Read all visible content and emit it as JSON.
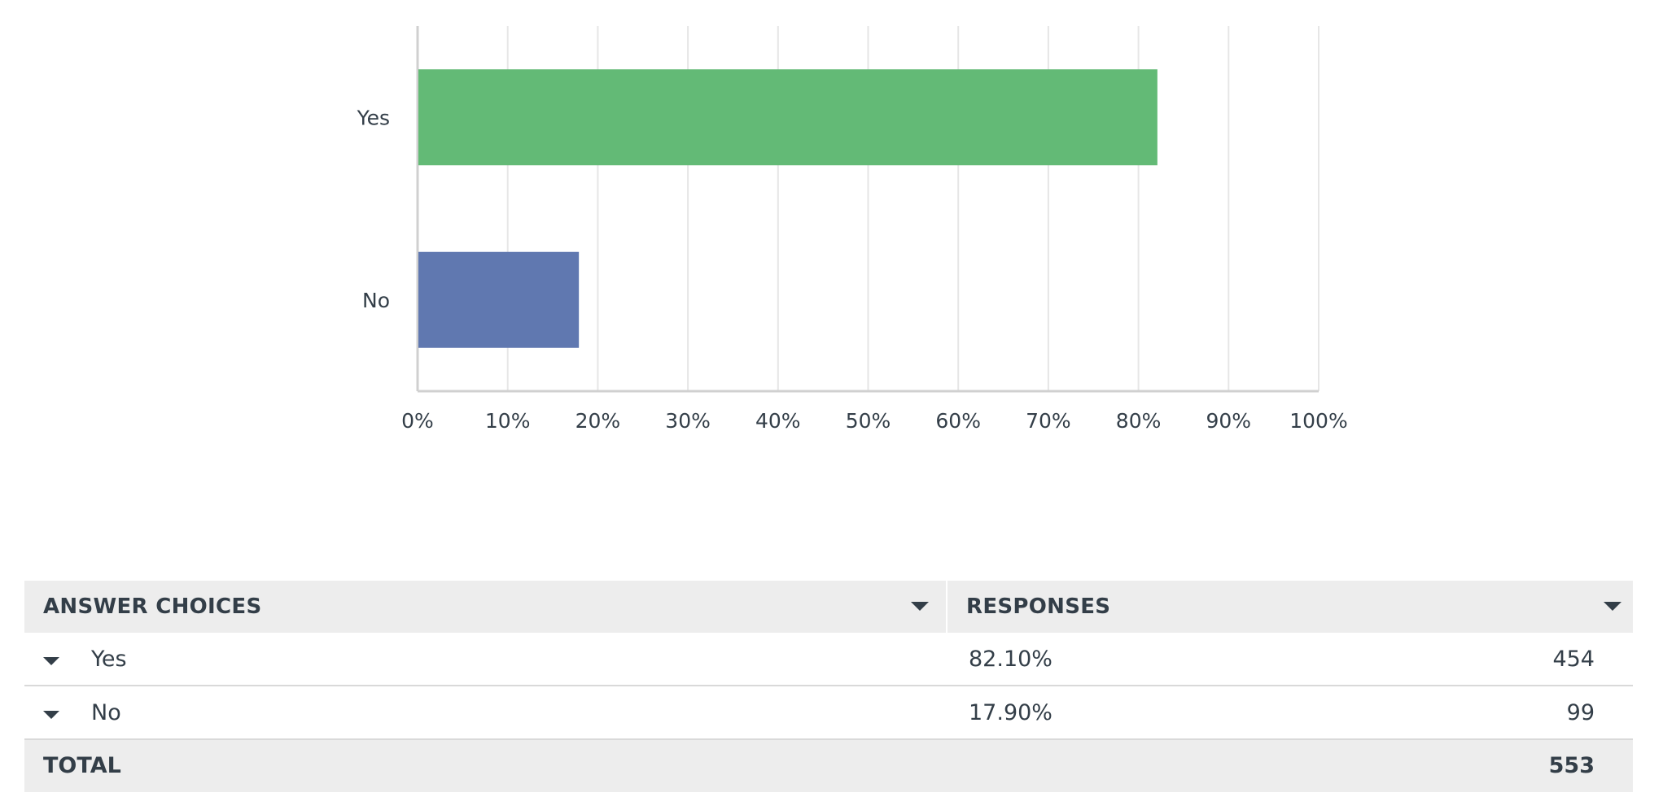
{
  "chart_data": {
    "type": "bar",
    "orientation": "horizontal",
    "categories": [
      "Yes",
      "No"
    ],
    "values": [
      82.1,
      17.9
    ],
    "colors": [
      "#63ba76",
      "#6078b0"
    ],
    "xlim": [
      0,
      100
    ],
    "xticks": [
      "0%",
      "10%",
      "20%",
      "30%",
      "40%",
      "50%",
      "60%",
      "70%",
      "80%",
      "90%",
      "100%"
    ],
    "grid": true,
    "title": "",
    "xlabel": "",
    "ylabel": ""
  },
  "table": {
    "header_answer": "ANSWER CHOICES",
    "header_responses": "RESPONSES",
    "rows": [
      {
        "choice": "Yes",
        "percent": "82.10%",
        "count": "454"
      },
      {
        "choice": "No",
        "percent": "17.90%",
        "count": "99"
      }
    ],
    "total_label": "TOTAL",
    "total_count": "553"
  }
}
